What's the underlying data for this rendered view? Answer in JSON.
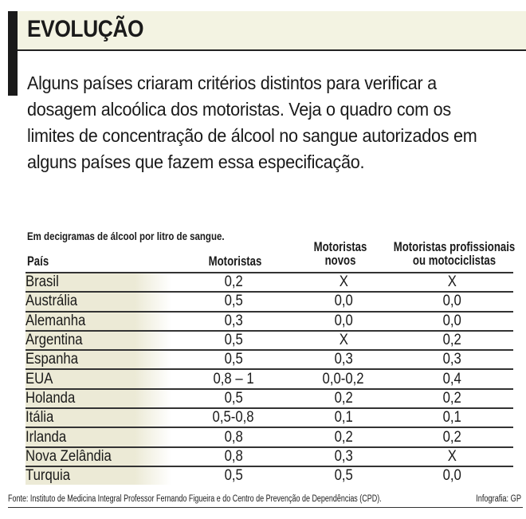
{
  "title": "EVOLUÇÃO",
  "intro": "Alguns países criaram critérios distintos para verificar a dosagem alcoólica dos motoristas. Veja o quadro com os limites de concentração de álcool no sangue autorizados em alguns países que fazem essa especificação.",
  "unit_note": "Em decigramas de álcool por litro de sangue.",
  "headers": {
    "country": "País",
    "drivers": "Motoristas",
    "new_drivers_1": "Motoristas",
    "new_drivers_2": "novos",
    "pro_1": "Motoristas profissionais",
    "pro_2": "ou motociclistas"
  },
  "rows": [
    {
      "country": "Brasil",
      "drivers": "0,2",
      "new": "X",
      "pro": "X"
    },
    {
      "country": "Austrália",
      "drivers": "0,5",
      "new": "0,0",
      "pro": "0,0"
    },
    {
      "country": "Alemanha",
      "drivers": "0,3",
      "new": "0,0",
      "pro": "0,0"
    },
    {
      "country": "Argentina",
      "drivers": "0,5",
      "new": "X",
      "pro": "0,2"
    },
    {
      "country": "Espanha",
      "drivers": "0,5",
      "new": "0,3",
      "pro": "0,3"
    },
    {
      "country": "EUA",
      "drivers": "0,8 – 1",
      "new": "0,0-0,2",
      "pro": "0,4"
    },
    {
      "country": "Holanda",
      "drivers": "0,5",
      "new": "0,2",
      "pro": "0,2"
    },
    {
      "country": "Itália",
      "drivers": "0,5-0,8",
      "new": "0,1",
      "pro": "0,1"
    },
    {
      "country": "Irlanda",
      "drivers": "0,8",
      "new": "0,2",
      "pro": "0,2"
    },
    {
      "country": "Nova Zelândia",
      "drivers": "0,8",
      "new": "0,3",
      "pro": "X"
    },
    {
      "country": "Turquia",
      "drivers": "0,5",
      "new": "0,5",
      "pro": "0,0"
    }
  ],
  "source": "Fonte: Instituto de Medicina Integral Professor Fernando Figueira e do Centro de Prevenção de Dependências (CPD).",
  "credit": "Infografia: GP"
}
